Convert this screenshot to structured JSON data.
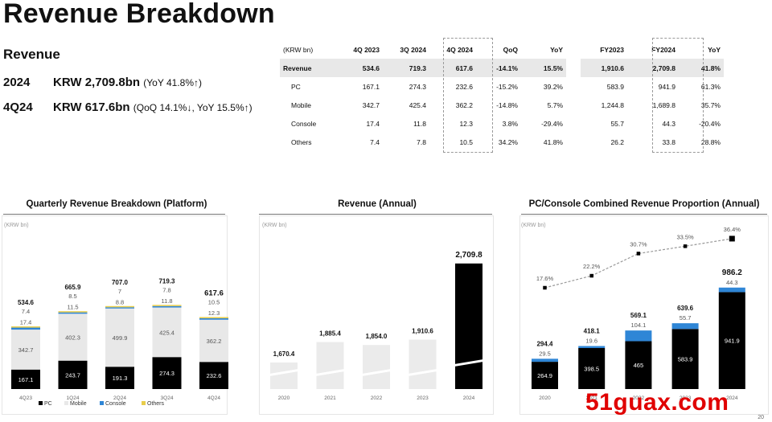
{
  "page_title": "Revenue Breakdown",
  "summary": {
    "label": "Revenue",
    "rows": [
      {
        "period": "2024",
        "value": "KRW 2,709.8bn",
        "note": "(YoY 41.8%↑)"
      },
      {
        "period": "4Q24",
        "value": "KRW 617.6bn",
        "note": "(QoQ 14.1%↓, YoY 15.5%↑)"
      }
    ]
  },
  "table": {
    "headers": [
      "(KRW bn)",
      "4Q 2023",
      "3Q 2024",
      "4Q 2024",
      "QoQ",
      "YoY",
      "FY2023",
      "FY2024",
      "YoY"
    ],
    "rows": [
      {
        "label": "Revenue",
        "cells": [
          "534.6",
          "719.3",
          "617.6",
          "-14.1%",
          "15.5%",
          "1,910.6",
          "2,709.8",
          "41.8%"
        ],
        "total": true
      },
      {
        "label": "PC",
        "cells": [
          "167.1",
          "274.3",
          "232.6",
          "-15.2%",
          "39.2%",
          "583.9",
          "941.9",
          "61.3%"
        ]
      },
      {
        "label": "Mobile",
        "cells": [
          "342.7",
          "425.4",
          "362.2",
          "-14.8%",
          "5.7%",
          "1,244.8",
          "1,689.8",
          "35.7%"
        ]
      },
      {
        "label": "Console",
        "cells": [
          "17.4",
          "11.8",
          "12.3",
          "3.8%",
          "-29.4%",
          "55.7",
          "44.3",
          "-20.4%"
        ]
      },
      {
        "label": "Others",
        "cells": [
          "7.4",
          "7.8",
          "10.5",
          "34.2%",
          "41.8%",
          "26.2",
          "33.8",
          "28.8%"
        ]
      }
    ]
  },
  "colors": {
    "pc": "#000000",
    "mobile": "#e8e8e8",
    "console": "#2f86d6",
    "others": "#e8cd4a",
    "line": "#999999"
  },
  "chart_data": [
    {
      "type": "bar",
      "stacked": true,
      "title": "Quarterly Revenue Breakdown (Platform)",
      "unit_label": "(KRW bn)",
      "categories": [
        "4Q23",
        "1Q24",
        "2Q24",
        "3Q24",
        "4Q24"
      ],
      "series": [
        {
          "name": "PC",
          "values": [
            167.1,
            243.7,
            191.3,
            274.3,
            232.6
          ]
        },
        {
          "name": "Mobile",
          "values": [
            342.7,
            402.3,
            499.9,
            425.4,
            362.2
          ]
        },
        {
          "name": "Console",
          "values": [
            17.4,
            11.5,
            8.8,
            11.8,
            12.3
          ]
        },
        {
          "name": "Others",
          "values": [
            7.4,
            8.5,
            7.0,
            7.8,
            10.5
          ]
        }
      ],
      "totals": [
        "534.6",
        "665.9",
        "707.0",
        "719.3",
        "617.6"
      ],
      "ylim": [
        0,
        1000
      ],
      "legend": "bottom"
    },
    {
      "type": "bar",
      "title": "Revenue (Annual)",
      "unit_label": "(KRW bn)",
      "categories": [
        "2020",
        "2021",
        "2022",
        "2023",
        "2024"
      ],
      "values": [
        1670.4,
        1885.4,
        1854.0,
        1910.6,
        2709.8
      ],
      "value_labels": [
        "1,670.4",
        "1,885.4",
        "1,854.0",
        "1,910.6",
        "2,709.8"
      ],
      "axis_break": true,
      "highlight": "2024"
    },
    {
      "type": "bar",
      "stacked": true,
      "title": "PC/Console Combined Revenue Proportion (Annual)",
      "unit_label": "(KRW bn)",
      "categories": [
        "2020",
        "2021",
        "2022",
        "2023",
        "2024"
      ],
      "series": [
        {
          "name": "PC",
          "values": [
            264.9,
            398.5,
            465.0,
            583.9,
            941.9
          ]
        },
        {
          "name": "Console",
          "values": [
            29.5,
            19.6,
            104.1,
            55.7,
            44.3
          ]
        }
      ],
      "totals": [
        "294.4",
        "418.1",
        "569.1",
        "639.6",
        "986.2"
      ],
      "proportion_line": {
        "values": [
          17.6,
          22.2,
          30.7,
          33.5,
          36.4
        ],
        "labels": [
          "17.6%",
          "22.2%",
          "30.7%",
          "33.5%",
          "36.4%"
        ]
      },
      "ylim": [
        0,
        1600
      ]
    }
  ],
  "watermark": "51guax.com",
  "page_number": "20"
}
